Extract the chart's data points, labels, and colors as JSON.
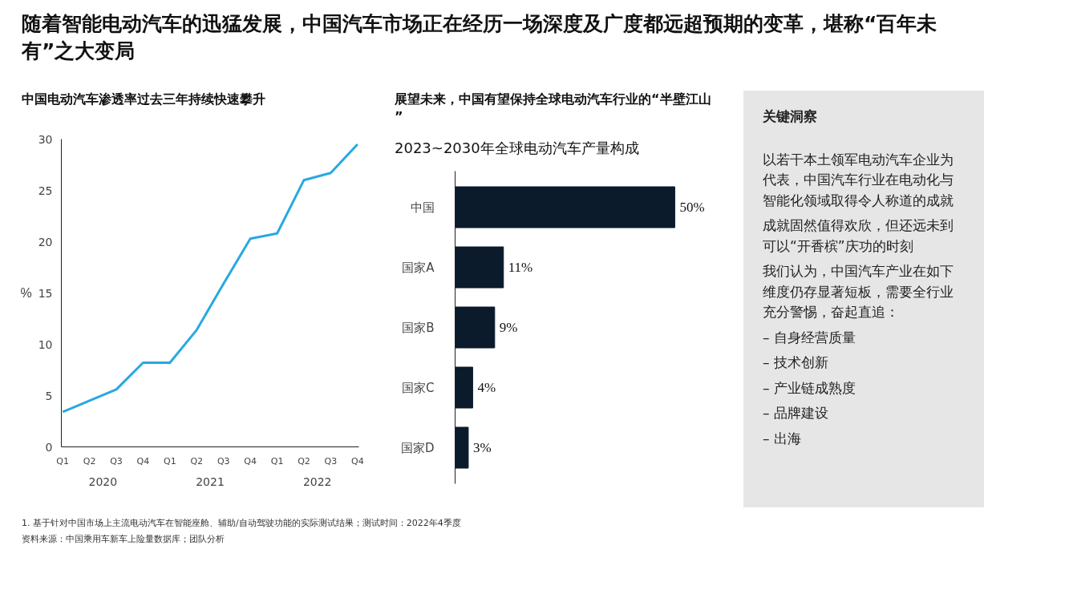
{
  "chart_data": [
    {
      "type": "other",
      "title": "随着智能电动汽车的迅猛发展，中国汽车市场正在经历一场深度及广度都远超预期的变革，堪称“百年未有”之大变局",
      "annotations": [
        "1.   基于针对中国市场上主流电动汽车在智能座舱、辅助/自动驾驶功能的实际测试结果；测试时间：2022年4季度",
        "资料来源：中国乘用车新车上险量数据库；团队分析"
      ]
    },
    {
      "type": "line",
      "title": "中国电动汽车渗透率过去三年持续快速攀升",
      "ylabel": "%",
      "categories": [
        "Q1",
        "Q2",
        "Q3",
        "Q4",
        "Q1",
        "Q2",
        "Q3",
        "Q4",
        "Q1",
        "Q2",
        "Q3",
        "Q4"
      ],
      "series": [
        {
          "color": "#29a8e0",
          "values": [
            3.4,
            4.5,
            5.6,
            8.2,
            8.2,
            11.4,
            15.9,
            20.3,
            20.8,
            26.0,
            26.7,
            29.5
          ]
        }
      ],
      "annotations": [
        "2020",
        "2021",
        "2022"
      ],
      "ylim": [
        0,
        30
      ],
      "yticks": [
        0,
        5,
        10,
        15,
        20,
        25,
        30
      ],
      "grid": false,
      "marker": "none",
      "line_style": "solid"
    },
    {
      "type": "bar",
      "orientation": "horizontal",
      "title": "展望未来，中国有望保持全球电动汽车行业的“半壁江山 ”",
      "subtitle": "2023~2030年全球电动汽车产量构成",
      "categories": [
        "中国",
        "国家A",
        "国家B",
        "国家C",
        "国家D"
      ],
      "values": [
        50,
        11,
        9,
        4,
        3
      ],
      "value_labels": [
        "50%",
        "11%",
        "9%",
        "4%",
        "3%"
      ],
      "color": "#0b1b2b",
      "grid": false
    },
    {
      "type": "other",
      "title": "关键洞察",
      "annotations": [
        "以若干本土领军电动汽车企业为代表，中国汽车行业在电动化与智能化领域取得令人称道的成就",
        "成就固然值得欢欣，但还远未到可以“开香槟”庆功的时刻",
        "我们认为，中国汽车产业在如下维度仍存显著短板，需要全行业充分警惕，奋起直追：",
        "–  自身经营质量",
        "–  技术创新",
        "–  产业链成熟度",
        "–  品牌建设",
        "–  出海"
      ]
    }
  ]
}
